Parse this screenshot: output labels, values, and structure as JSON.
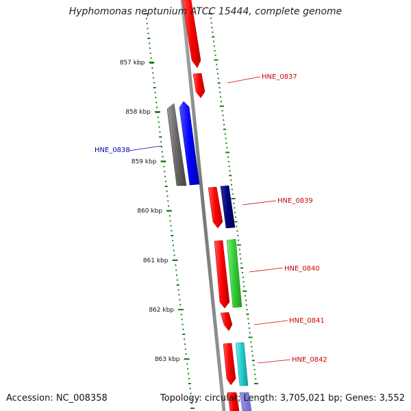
{
  "title": "Hyphomonas neptunium ATCC 15444, complete genome",
  "footer": {
    "accession": "Accession: NC_008358",
    "summary": "Topology: circular; Length: 3,705,021 bp; Genes: 3,552"
  },
  "ruler": {
    "ticks": [
      {
        "kbp": 857,
        "label": "857 kbp"
      },
      {
        "kbp": 858,
        "label": "858 kbp"
      },
      {
        "kbp": 859,
        "label": "859 kbp"
      },
      {
        "kbp": 860,
        "label": "860 kbp"
      },
      {
        "kbp": 861,
        "label": "861 kbp"
      },
      {
        "kbp": 862,
        "label": "862 kbp"
      },
      {
        "kbp": 863,
        "label": "863 kbp"
      }
    ]
  },
  "colors": {
    "backbone": "#808080",
    "tick_dots": "#1a7a1a",
    "forward_label": "#cc0000",
    "reverse_label": "#0000aa"
  },
  "genes": [
    {
      "name": "HNE_0838",
      "strand": "reverse",
      "color": "#0000ff",
      "cog_color": "#666666",
      "labeled": true
    },
    {
      "name": "HNE_0837",
      "strand": "forward",
      "color": "#ff0000",
      "labeled": true
    },
    {
      "name": "HNE_0839",
      "strand": "forward",
      "color": "#ff0000",
      "cog_color": "#000080",
      "labeled": true
    },
    {
      "name": "HNE_0840",
      "strand": "forward",
      "color": "#ff0000",
      "cog_color": "#33cc33",
      "labeled": true
    },
    {
      "name": "HNE_0841",
      "strand": "forward",
      "color": "#ff0000",
      "labeled": true
    },
    {
      "name": "HNE_0842",
      "strand": "forward",
      "color": "#ff0000",
      "cog_color": "#20cccc",
      "labeled": true
    }
  ]
}
